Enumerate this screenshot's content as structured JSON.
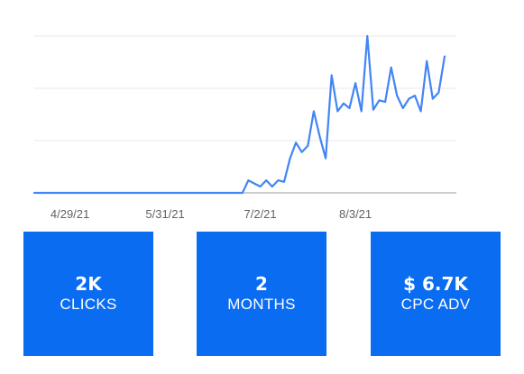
{
  "chart_data": {
    "type": "line",
    "title": "",
    "xlabel": "",
    "ylabel": "",
    "x_tick_labels": [
      "4/29/21",
      "5/31/21",
      "7/2/21",
      "8/3/21"
    ],
    "x_tick_positions": [
      12,
      44,
      76,
      108
    ],
    "y_ticks_labeled": false,
    "grid": true,
    "legend": "none",
    "ylim": [
      0,
      100
    ],
    "series_color": "#4285f4",
    "x": [
      0,
      10,
      20,
      30,
      40,
      50,
      60,
      70,
      72,
      74,
      76,
      78,
      80,
      82,
      84,
      86,
      88,
      90,
      92,
      94,
      96,
      98,
      100,
      102,
      104,
      106,
      108,
      110,
      112,
      114,
      116,
      118,
      120,
      122,
      124,
      126,
      128,
      130,
      132,
      134,
      136,
      138
    ],
    "values": [
      0,
      0,
      0,
      0,
      0,
      0,
      0,
      0,
      8,
      6,
      4,
      8,
      4,
      8,
      7,
      22,
      32,
      26,
      30,
      52,
      36,
      22,
      75,
      52,
      57,
      54,
      70,
      52,
      100,
      53,
      59,
      58,
      80,
      62,
      54,
      60,
      62,
      52,
      84,
      60,
      64,
      87
    ],
    "annotations": []
  },
  "stats": [
    {
      "value": "2K",
      "label": "CLICKS"
    },
    {
      "value": "2",
      "label": "MONTHS"
    },
    {
      "value": "$ 6.7K",
      "label": "CPC ADV"
    }
  ],
  "colors": {
    "line": "#4285f4",
    "card": "#0a6cf1",
    "grid": "#e8e8e8",
    "axis": "#bdbdbd",
    "tick_text": "#5f6368"
  }
}
